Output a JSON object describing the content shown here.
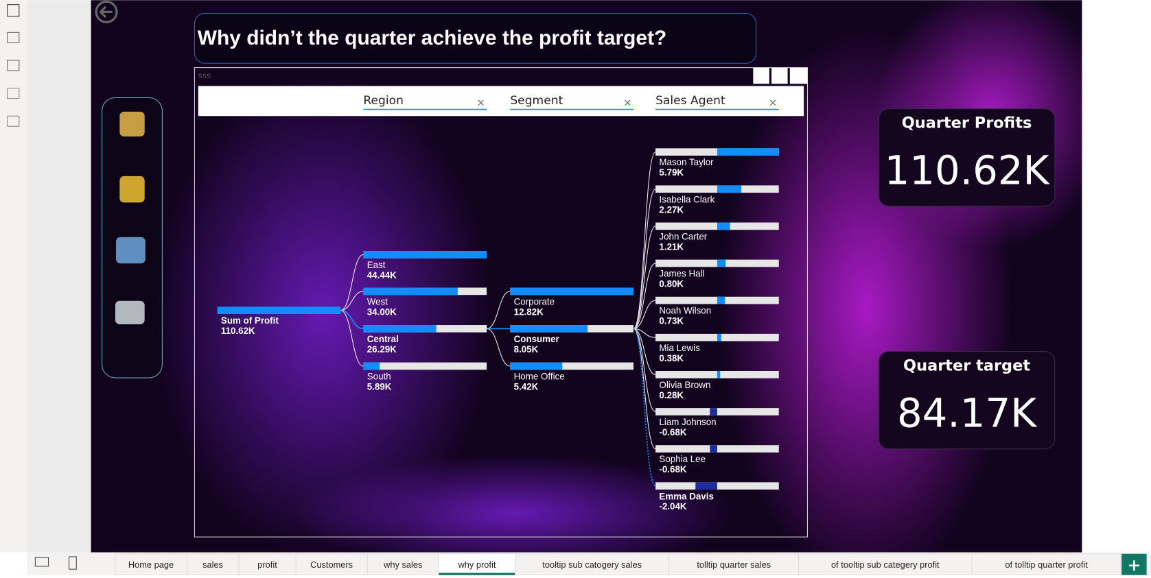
{
  "title": "Why didn’t the quarter achieve the profit target?",
  "visual_header": "sss",
  "tree": {
    "fields": [
      "Region",
      "Segment",
      "Sales Agent"
    ],
    "root": {
      "name": "Sum of Profit",
      "value": 110.62,
      "value_label": "110.62K"
    },
    "levels": [
      {
        "selected": 2,
        "items": [
          {
            "name": "East",
            "value": 44.44,
            "value_label": "44.44K"
          },
          {
            "name": "West",
            "value": 34.0,
            "value_label": "34.00K"
          },
          {
            "name": "Central",
            "value": 26.29,
            "value_label": "26.29K"
          },
          {
            "name": "South",
            "value": 5.89,
            "value_label": "5.89K"
          }
        ]
      },
      {
        "selected": 1,
        "items": [
          {
            "name": "Corporate",
            "value": 12.82,
            "value_label": "12.82K"
          },
          {
            "name": "Consumer",
            "value": 8.05,
            "value_label": "8.05K"
          },
          {
            "name": "Home Office",
            "value": 5.42,
            "value_label": "5.42K"
          }
        ]
      },
      {
        "selected": 9,
        "items": [
          {
            "name": "Mason Taylor",
            "value": 5.79,
            "value_label": "5.79K"
          },
          {
            "name": "Isabella Clark",
            "value": 2.27,
            "value_label": "2.27K"
          },
          {
            "name": "John Carter",
            "value": 1.21,
            "value_label": "1.21K"
          },
          {
            "name": "James Hall",
            "value": 0.8,
            "value_label": "0.80K"
          },
          {
            "name": "Noah Wilson",
            "value": 0.73,
            "value_label": "0.73K"
          },
          {
            "name": "Mia Lewis",
            "value": 0.38,
            "value_label": "0.38K"
          },
          {
            "name": "Olivia Brown",
            "value": 0.28,
            "value_label": "0.28K"
          },
          {
            "name": "Liam Johnson",
            "value": -0.68,
            "value_label": "-0.68K"
          },
          {
            "name": "Sophia Lee",
            "value": -0.68,
            "value_label": "-0.68K"
          },
          {
            "name": "Emma Davis",
            "value": -2.04,
            "value_label": "-2.04K"
          }
        ]
      }
    ]
  },
  "cards": [
    {
      "title": "Quarter Profits",
      "value": "110.62K"
    },
    {
      "title": "Quarter target",
      "value": "84.17K"
    }
  ],
  "tabs": {
    "active": 5,
    "items": [
      "Home page",
      "sales",
      "profit",
      "Customers",
      "why sales",
      "why profit",
      "tooltip sub catogery sales",
      "tolltip quarter sales",
      "of tooltip sub categery profit",
      "of tolltip quarter profit"
    ]
  }
}
